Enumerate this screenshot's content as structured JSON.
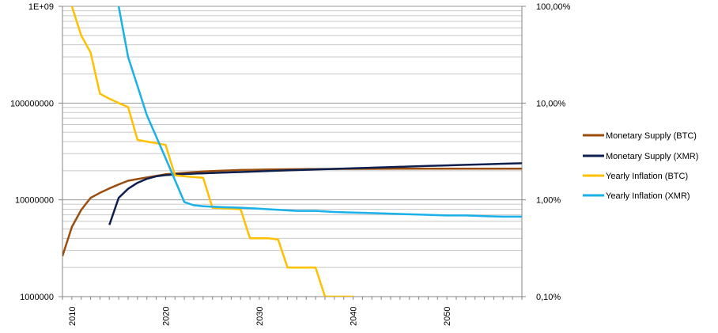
{
  "chart_data": {
    "type": "line",
    "title": "",
    "xlabel": "",
    "ylabel": "",
    "x_range": [
      2009,
      2058
    ],
    "x_ticks": [
      "2010",
      "2020",
      "2030",
      "2040",
      "2050"
    ],
    "y_left": {
      "scale": "log",
      "range": [
        1000000,
        1000000000
      ],
      "ticks": [
        "1000000",
        "10000000",
        "100000000",
        "1E+09"
      ]
    },
    "y_right": {
      "scale": "log",
      "range": [
        0.001,
        1
      ],
      "ticks": [
        "0,10%",
        "1,00%",
        "10,00%",
        "100,00%"
      ]
    },
    "grid": true,
    "legend_position": "right",
    "series": [
      {
        "name": "Monetary Supply (BTC)",
        "axis": "left",
        "color": "#9a4d0c",
        "points": [
          [
            2009,
            2625000
          ],
          [
            2010,
            5250000
          ],
          [
            2011,
            7875000
          ],
          [
            2012,
            10500000
          ],
          [
            2013,
            11812500
          ],
          [
            2014,
            13125000
          ],
          [
            2015,
            14437500
          ],
          [
            2016,
            15750000
          ],
          [
            2017,
            16406250
          ],
          [
            2018,
            17062500
          ],
          [
            2019,
            17718750
          ],
          [
            2020,
            18375000
          ],
          [
            2021,
            18703125
          ],
          [
            2022,
            19031250
          ],
          [
            2023,
            19359375
          ],
          [
            2024,
            19687500
          ],
          [
            2025,
            19851562
          ],
          [
            2026,
            20015625
          ],
          [
            2027,
            20179687
          ],
          [
            2028,
            20343750
          ],
          [
            2029,
            20425781
          ],
          [
            2030,
            20507812
          ],
          [
            2031,
            20589843
          ],
          [
            2032,
            20671875
          ],
          [
            2033,
            20712890
          ],
          [
            2034,
            20753906
          ],
          [
            2035,
            20794921
          ],
          [
            2036,
            20835937
          ],
          [
            2037,
            20856445
          ],
          [
            2038,
            20876953
          ],
          [
            2039,
            20897460
          ],
          [
            2040,
            20917968
          ],
          [
            2045,
            20960000
          ],
          [
            2050,
            20985000
          ],
          [
            2058,
            20999000
          ]
        ]
      },
      {
        "name": "Monetary Supply (XMR)",
        "axis": "left",
        "color": "#0d1f4f",
        "points": [
          [
            2014,
            5500000
          ],
          [
            2015,
            10500000
          ],
          [
            2016,
            13000000
          ],
          [
            2017,
            15000000
          ],
          [
            2018,
            16500000
          ],
          [
            2019,
            17500000
          ],
          [
            2020,
            18000000
          ],
          [
            2021,
            18300000
          ],
          [
            2022,
            18500000
          ],
          [
            2024,
            18800000
          ],
          [
            2026,
            19100000
          ],
          [
            2028,
            19400000
          ],
          [
            2030,
            19700000
          ],
          [
            2032,
            20000000
          ],
          [
            2034,
            20300000
          ],
          [
            2036,
            20600000
          ],
          [
            2038,
            20900000
          ],
          [
            2040,
            21200000
          ],
          [
            2042,
            21500000
          ],
          [
            2044,
            21800000
          ],
          [
            2046,
            22100000
          ],
          [
            2048,
            22400000
          ],
          [
            2050,
            22700000
          ],
          [
            2052,
            23000000
          ],
          [
            2054,
            23300000
          ],
          [
            2056,
            23600000
          ],
          [
            2058,
            23900000
          ]
        ]
      },
      {
        "name": "Yearly Inflation  (BTC)",
        "axis": "right",
        "color": "#ffc000",
        "points": [
          [
            2010,
            1.0
          ],
          [
            2011,
            0.5
          ],
          [
            2012,
            0.333
          ],
          [
            2013,
            0.125
          ],
          [
            2014,
            0.111
          ],
          [
            2015,
            0.1
          ],
          [
            2016,
            0.0909
          ],
          [
            2017,
            0.0417
          ],
          [
            2018,
            0.04
          ],
          [
            2019,
            0.0385
          ],
          [
            2020,
            0.037
          ],
          [
            2021,
            0.0179
          ],
          [
            2022,
            0.0175
          ],
          [
            2023,
            0.0172
          ],
          [
            2024,
            0.0169
          ],
          [
            2025,
            0.0083
          ],
          [
            2026,
            0.0082
          ],
          [
            2027,
            0.0081
          ],
          [
            2028,
            0.008
          ],
          [
            2029,
            0.004
          ],
          [
            2030,
            0.004
          ],
          [
            2031,
            0.004
          ],
          [
            2032,
            0.0039
          ],
          [
            2033,
            0.002
          ],
          [
            2034,
            0.002
          ],
          [
            2035,
            0.002
          ],
          [
            2036,
            0.002
          ],
          [
            2037,
            0.001
          ],
          [
            2040,
            0.001
          ]
        ]
      },
      {
        "name": "Yearly Inflation  (XMR)",
        "axis": "right",
        "color": "#1ab0e8",
        "points": [
          [
            2015,
            1.0
          ],
          [
            2016,
            0.3
          ],
          [
            2017,
            0.15
          ],
          [
            2018,
            0.075
          ],
          [
            2019,
            0.045
          ],
          [
            2020,
            0.027
          ],
          [
            2021,
            0.016
          ],
          [
            2022,
            0.0095
          ],
          [
            2023,
            0.0088
          ],
          [
            2024,
            0.0086
          ],
          [
            2026,
            0.0084
          ],
          [
            2028,
            0.0083
          ],
          [
            2030,
            0.0081
          ],
          [
            2032,
            0.0079
          ],
          [
            2034,
            0.0077
          ],
          [
            2036,
            0.0077
          ],
          [
            2038,
            0.0075
          ],
          [
            2040,
            0.0074
          ],
          [
            2042,
            0.0073
          ],
          [
            2044,
            0.0072
          ],
          [
            2046,
            0.0071
          ],
          [
            2048,
            0.007
          ],
          [
            2050,
            0.0069
          ],
          [
            2052,
            0.0069
          ],
          [
            2054,
            0.0068
          ],
          [
            2056,
            0.0067
          ],
          [
            2058,
            0.0067
          ]
        ]
      }
    ]
  }
}
